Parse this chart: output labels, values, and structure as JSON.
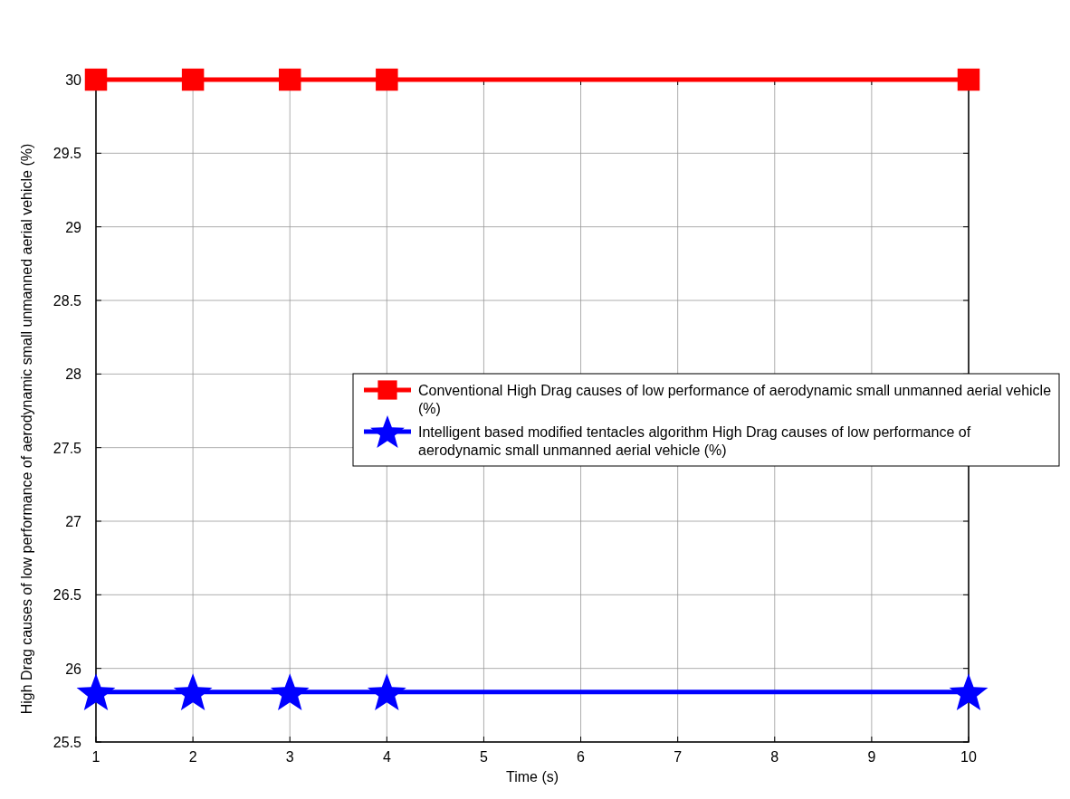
{
  "chart_data": {
    "type": "line",
    "xlabel": "Time (s)",
    "ylabel": "High Drag causes of low performance of aerodynamic small unmanned aerial vehicle (%)",
    "x": [
      1,
      2,
      3,
      4,
      10
    ],
    "series": [
      {
        "name": "Conventional High Drag causes of low performance of aerodynamic small unmanned aerial vehicle (%)",
        "color": "#ff0000",
        "marker": "square",
        "values": [
          30,
          30,
          30,
          30,
          30
        ]
      },
      {
        "name": "Intelligent based modified tentacles algorithm High Drag causes of low performance of aerodynamic small unmanned aerial vehicle (%)",
        "color": "#0000ff",
        "marker": "star",
        "values": [
          25.84,
          25.84,
          25.84,
          25.84,
          25.84
        ]
      }
    ],
    "xlim": [
      1,
      10
    ],
    "xticks": [
      1,
      2,
      3,
      4,
      5,
      6,
      7,
      8,
      9,
      10
    ],
    "ylim": [
      25.5,
      30
    ],
    "yticks": [
      25.5,
      26,
      26.5,
      27,
      27.5,
      28,
      28.5,
      29,
      29.5,
      30
    ],
    "grid": true,
    "legend": "right",
    "line_style": "solid"
  }
}
